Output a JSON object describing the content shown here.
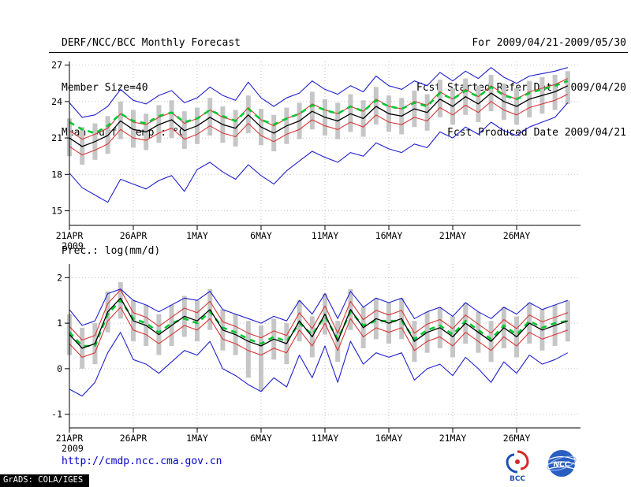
{
  "header": {
    "title": "DERF/NCC/BCC Monthly Forecast",
    "member_size": "Member Size=40",
    "var1_label": "Mean Surf. Temp.: °C",
    "for_range": "For 2009/04/21-2009/05/30",
    "fcst_started": "Fcst Started Refer Date 2009/04/20",
    "fcst_produced": "Fcst Produced Date 2009/04/21"
  },
  "footer": {
    "url": "http://cmdp.ncc.cma.gov.cn",
    "grads_tag": "GrADS: COLA/IGES",
    "logo_bcc_text": "BCC",
    "logo_ncc_text": "NCC"
  },
  "colors": {
    "blue": "#2020d0",
    "red": "#d83838",
    "black": "#000000",
    "green": "#00c830",
    "bar": "#c6c6c6",
    "url_blue": "#0000cc"
  },
  "chart_data": [
    {
      "type": "line",
      "title": "Mean Surf. Temp.: °C",
      "n_days": 40,
      "x_tick_days": [
        0,
        5,
        10,
        15,
        20,
        25,
        30,
        35
      ],
      "x_tick_labels": [
        "21APR",
        "26APR",
        "1MAY",
        "6MAY",
        "11MAY",
        "16MAY",
        "21MAY",
        "26MAY"
      ],
      "x_sub_label": "2009",
      "ylim": [
        13.8,
        27.3
      ],
      "yticks": [
        15,
        18,
        21,
        24,
        27
      ],
      "grid": true,
      "legend": "none",
      "bars": {
        "name": "member-spread-bar",
        "high": [
          22.6,
          21.9,
          22.2,
          22.8,
          24.0,
          23.3,
          23.0,
          23.7,
          24.1,
          23.2,
          23.5,
          24.3,
          23.6,
          23.3,
          24.5,
          23.4,
          22.9,
          23.5,
          23.9,
          24.8,
          24.2,
          23.9,
          24.6,
          24.1,
          25.2,
          24.5,
          24.3,
          24.9,
          24.6,
          25.8,
          25.1,
          25.9,
          25.3,
          26.2,
          25.5,
          25.1,
          25.7,
          26.0,
          26.2,
          26.5
        ],
        "low": [
          19.5,
          18.8,
          19.2,
          19.7,
          20.9,
          20.2,
          20.0,
          20.6,
          21.0,
          20.1,
          20.5,
          21.2,
          20.6,
          20.3,
          21.4,
          20.4,
          19.9,
          20.5,
          20.9,
          21.7,
          21.2,
          20.9,
          21.5,
          21.1,
          22.1,
          21.5,
          21.3,
          21.9,
          21.6,
          22.7,
          22.1,
          22.9,
          22.3,
          23.2,
          22.5,
          22.1,
          22.7,
          23.0,
          23.3,
          23.8
        ]
      },
      "series": [
        {
          "name": "ensemble-max",
          "color": "blue",
          "width": 1.1,
          "dash": null,
          "values": [
            23.9,
            22.7,
            22.9,
            23.6,
            25.0,
            24.1,
            23.8,
            24.5,
            24.9,
            23.9,
            24.3,
            25.2,
            24.5,
            24.1,
            25.6,
            24.3,
            23.6,
            24.3,
            24.7,
            25.7,
            25.0,
            24.6,
            25.3,
            24.8,
            26.1,
            25.3,
            25.0,
            25.7,
            25.3,
            26.4,
            25.7,
            26.5,
            25.9,
            26.8,
            26.0,
            25.5,
            26.1,
            26.3,
            26.5,
            26.8
          ]
        },
        {
          "name": "ensemble-min",
          "color": "blue",
          "width": 1.1,
          "dash": null,
          "values": [
            18.1,
            16.9,
            16.3,
            15.7,
            17.6,
            17.2,
            16.8,
            17.5,
            17.9,
            16.6,
            18.4,
            19.0,
            18.2,
            17.6,
            18.8,
            17.9,
            17.2,
            18.3,
            19.1,
            19.9,
            19.4,
            19.0,
            19.8,
            19.5,
            20.6,
            20.1,
            19.8,
            20.5,
            20.2,
            21.5,
            21.0,
            21.9,
            21.3,
            22.3,
            21.6,
            21.2,
            21.9,
            22.3,
            22.7,
            23.9
          ]
        },
        {
          "name": "upper-spread",
          "color": "red",
          "width": 1.1,
          "dash": null,
          "values": [
            21.6,
            20.9,
            21.3,
            21.8,
            23.0,
            22.3,
            22.1,
            22.7,
            23.1,
            22.2,
            22.6,
            23.3,
            22.7,
            22.4,
            23.5,
            22.5,
            22.0,
            22.6,
            23.0,
            23.8,
            23.3,
            23.0,
            23.6,
            23.2,
            24.2,
            23.6,
            23.4,
            24.0,
            23.7,
            24.8,
            24.2,
            25.0,
            24.4,
            25.3,
            24.6,
            24.2,
            24.8,
            25.1,
            25.4,
            25.9
          ]
        },
        {
          "name": "lower-spread",
          "color": "red",
          "width": 1.1,
          "dash": null,
          "values": [
            20.3,
            19.6,
            20.0,
            20.5,
            21.7,
            21.0,
            20.8,
            21.4,
            21.8,
            20.9,
            21.3,
            22.0,
            21.4,
            21.1,
            22.2,
            21.2,
            20.7,
            21.3,
            21.7,
            22.5,
            22.0,
            21.7,
            22.3,
            21.9,
            22.9,
            22.3,
            22.1,
            22.7,
            22.4,
            23.5,
            22.9,
            23.7,
            23.1,
            24.0,
            23.3,
            22.9,
            23.5,
            23.8,
            24.1,
            24.6
          ]
        },
        {
          "name": "reference-dashed",
          "color": "green",
          "width": 2.6,
          "dash": "7 6",
          "values": [
            22.3,
            21.7,
            21.4,
            22.0,
            23.0,
            22.4,
            22.2,
            22.8,
            23.1,
            22.3,
            22.6,
            23.3,
            22.8,
            22.4,
            23.4,
            22.5,
            22.1,
            22.6,
            23.0,
            23.7,
            23.3,
            23.0,
            23.6,
            23.2,
            24.1,
            23.6,
            23.4,
            23.9,
            23.6,
            24.7,
            24.2,
            24.9,
            24.4,
            25.2,
            24.5,
            24.2,
            24.7,
            25.0,
            25.3,
            25.7
          ]
        },
        {
          "name": "ensemble-mean",
          "color": "black",
          "width": 1.3,
          "dash": null,
          "values": [
            21.0,
            20.3,
            20.7,
            21.2,
            22.4,
            21.7,
            21.5,
            22.1,
            22.5,
            21.6,
            22.0,
            22.7,
            22.1,
            21.8,
            22.9,
            21.9,
            21.4,
            22.0,
            22.4,
            23.2,
            22.7,
            22.4,
            23.0,
            22.6,
            23.6,
            23.0,
            22.8,
            23.4,
            23.1,
            24.2,
            23.6,
            24.4,
            23.8,
            24.7,
            24.0,
            23.6,
            24.2,
            24.5,
            24.8,
            25.3
          ]
        }
      ]
    },
    {
      "type": "line",
      "title": "Prec.: log(mm/d)",
      "n_days": 40,
      "x_tick_days": [
        0,
        5,
        10,
        15,
        20,
        25,
        30,
        35
      ],
      "x_tick_labels": [
        "21APR",
        "26APR",
        "1MAY",
        "6MAY",
        "11MAY",
        "16MAY",
        "21MAY",
        "26MAY"
      ],
      "x_sub_label": "2009",
      "ylim": [
        -1.3,
        2.3
      ],
      "yticks": [
        -1,
        0,
        1,
        2
      ],
      "grid": true,
      "legend": "none",
      "bars": {
        "name": "member-spread-bar",
        "high": [
          1.2,
          0.9,
          1.0,
          1.7,
          1.9,
          1.5,
          1.4,
          1.2,
          1.4,
          1.6,
          1.5,
          1.75,
          1.3,
          1.2,
          1.05,
          0.95,
          1.1,
          1.0,
          1.5,
          1.15,
          1.65,
          1.05,
          1.75,
          1.35,
          1.55,
          1.45,
          1.55,
          1.05,
          1.25,
          1.35,
          1.15,
          1.45,
          1.25,
          1.05,
          1.35,
          1.15,
          1.45,
          1.3,
          1.4,
          1.5
        ],
        "low": [
          0.3,
          0.0,
          0.1,
          0.8,
          1.1,
          0.6,
          0.5,
          0.3,
          0.5,
          0.7,
          0.6,
          0.85,
          0.4,
          0.3,
          -0.2,
          -0.5,
          0.2,
          0.1,
          0.6,
          0.25,
          0.75,
          0.15,
          0.85,
          0.45,
          0.65,
          0.55,
          0.65,
          0.15,
          0.35,
          0.45,
          0.25,
          0.55,
          0.35,
          0.15,
          0.45,
          0.25,
          0.55,
          0.4,
          0.5,
          0.6
        ]
      },
      "series": [
        {
          "name": "ensemble-max",
          "color": "blue",
          "width": 1.1,
          "dash": null,
          "values": [
            1.3,
            0.95,
            1.05,
            1.65,
            1.75,
            1.5,
            1.4,
            1.25,
            1.4,
            1.55,
            1.5,
            1.7,
            1.3,
            1.2,
            1.1,
            1.0,
            1.15,
            1.05,
            1.5,
            1.2,
            1.65,
            1.1,
            1.7,
            1.35,
            1.55,
            1.45,
            1.55,
            1.1,
            1.25,
            1.35,
            1.15,
            1.45,
            1.25,
            1.1,
            1.35,
            1.2,
            1.45,
            1.3,
            1.4,
            1.5
          ]
        },
        {
          "name": "ensemble-min",
          "color": "blue",
          "width": 1.1,
          "dash": null,
          "values": [
            -0.45,
            -0.6,
            -0.3,
            0.35,
            0.8,
            0.2,
            0.1,
            -0.1,
            0.15,
            0.4,
            0.3,
            0.6,
            0.0,
            -0.15,
            -0.35,
            -0.5,
            -0.2,
            -0.4,
            0.3,
            -0.2,
            0.5,
            -0.3,
            0.6,
            0.1,
            0.35,
            0.25,
            0.35,
            -0.25,
            0.0,
            0.1,
            -0.15,
            0.25,
            0.0,
            -0.3,
            0.15,
            -0.1,
            0.3,
            0.1,
            0.2,
            0.35
          ]
        },
        {
          "name": "upper-spread",
          "color": "red",
          "width": 1.1,
          "dash": null,
          "values": [
            0.93,
            0.63,
            0.73,
            1.43,
            1.73,
            1.23,
            1.13,
            0.93,
            1.13,
            1.33,
            1.23,
            1.48,
            1.03,
            0.93,
            0.78,
            0.68,
            0.83,
            0.73,
            1.23,
            0.88,
            1.38,
            0.78,
            1.48,
            1.08,
            1.28,
            1.18,
            1.28,
            0.78,
            0.98,
            1.08,
            0.88,
            1.18,
            0.98,
            0.78,
            1.08,
            0.88,
            1.18,
            1.03,
            1.13,
            1.23
          ]
        },
        {
          "name": "lower-spread",
          "color": "red",
          "width": 1.1,
          "dash": null,
          "values": [
            0.55,
            0.25,
            0.35,
            1.05,
            1.35,
            0.85,
            0.75,
            0.55,
            0.75,
            0.95,
            0.85,
            1.1,
            0.65,
            0.55,
            0.4,
            0.3,
            0.45,
            0.35,
            0.85,
            0.5,
            1.0,
            0.4,
            1.1,
            0.7,
            0.9,
            0.8,
            0.9,
            0.4,
            0.6,
            0.7,
            0.5,
            0.8,
            0.6,
            0.4,
            0.7,
            0.5,
            0.8,
            0.65,
            0.75,
            0.85
          ]
        },
        {
          "name": "reference-dashed",
          "color": "green",
          "width": 2.6,
          "dash": "7 6",
          "values": [
            0.8,
            0.5,
            0.5,
            1.2,
            1.5,
            1.1,
            1.0,
            0.8,
            1.0,
            1.1,
            1.0,
            1.25,
            0.9,
            0.8,
            0.65,
            0.55,
            0.7,
            0.6,
            1.0,
            0.75,
            1.15,
            0.65,
            1.25,
            0.95,
            1.05,
            1.05,
            1.05,
            0.65,
            0.85,
            0.95,
            0.75,
            1.05,
            0.85,
            0.65,
            0.95,
            0.75,
            1.05,
            0.9,
            1.0,
            1.05
          ]
        },
        {
          "name": "ensemble-mean",
          "color": "black",
          "width": 1.3,
          "dash": null,
          "values": [
            0.75,
            0.45,
            0.55,
            1.25,
            1.55,
            1.05,
            0.95,
            0.75,
            0.95,
            1.15,
            1.05,
            1.3,
            0.85,
            0.75,
            0.6,
            0.5,
            0.65,
            0.55,
            1.05,
            0.7,
            1.2,
            0.6,
            1.3,
            0.9,
            1.1,
            1.0,
            1.1,
            0.6,
            0.8,
            0.9,
            0.7,
            1.0,
            0.8,
            0.6,
            0.9,
            0.7,
            1.0,
            0.85,
            0.95,
            1.05
          ]
        }
      ]
    }
  ]
}
